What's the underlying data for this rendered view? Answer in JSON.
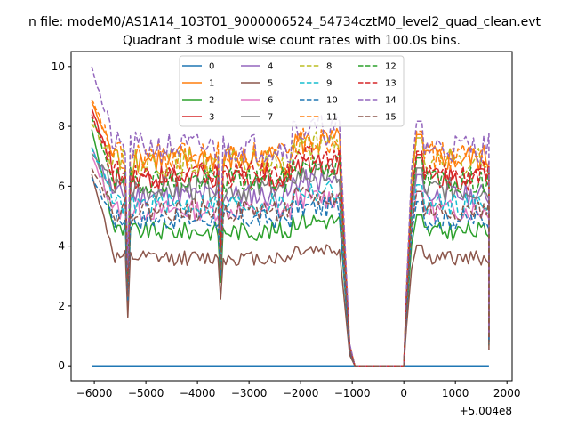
{
  "chart_data": {
    "type": "line",
    "supertitle": "n file: modeM0/AS1A14_103T01_9000006524_54734cztM0_level2_quad_clean.evt",
    "title": "Quadrant 3 module wise count rates with 100.0s bins.",
    "xlabel": "",
    "ylabel": "",
    "x_offset_label": "+5.004e8",
    "xlim": [
      -6450,
      2100
    ],
    "ylim": [
      -0.5,
      10.5
    ],
    "xticks": [
      -6000,
      -5000,
      -4000,
      -3000,
      -2000,
      -1000,
      0,
      1000,
      2000
    ],
    "xtick_labels": [
      "−6000",
      "−5000",
      "−4000",
      "−3000",
      "−2000",
      "−1000",
      "0",
      "1000",
      "2000"
    ],
    "yticks": [
      0,
      2,
      4,
      6,
      8,
      10
    ],
    "ytick_labels": [
      "0",
      "2",
      "4",
      "6",
      "8",
      "10"
    ],
    "grid": false,
    "legend_position": "top-center",
    "legend_columns": 4,
    "segments": [
      {
        "x0": -6050,
        "x1": -1250
      },
      {
        "x0": 250,
        "x1": 1650
      }
    ],
    "series": [
      {
        "name": "0",
        "color": "#1f77b4",
        "style": "solid",
        "level": 0.0,
        "start": 0.0
      },
      {
        "name": "1",
        "color": "#ff7f0e",
        "style": "solid",
        "level": 6.9,
        "start": 8.8
      },
      {
        "name": "2",
        "color": "#2ca02c",
        "style": "solid",
        "level": 4.5,
        "start": 7.9
      },
      {
        "name": "3",
        "color": "#d62728",
        "style": "solid",
        "level": 6.3,
        "start": 8.6
      },
      {
        "name": "4",
        "color": "#9467bd",
        "style": "solid",
        "level": 5.7,
        "start": 7.3
      },
      {
        "name": "5",
        "color": "#8c564b",
        "style": "solid",
        "level": 3.6,
        "start": 6.4
      },
      {
        "name": "6",
        "color": "#e377c2",
        "style": "solid",
        "level": 5.2,
        "start": 7.0
      },
      {
        "name": "7",
        "color": "#7f7f7f",
        "style": "solid",
        "level": 5.9,
        "start": 7.1
      },
      {
        "name": "8",
        "color": "#bcbd22",
        "style": "dashed",
        "level": 6.8,
        "start": 8.1
      },
      {
        "name": "9",
        "color": "#17becf",
        "style": "dashed",
        "level": 5.4,
        "start": 7.3
      },
      {
        "name": "10",
        "color": "#1f77b4",
        "style": "dashed",
        "level": 4.9,
        "start": 6.3
      },
      {
        "name": "11",
        "color": "#ff7f0e",
        "style": "dashed",
        "level": 7.0,
        "start": 8.9
      },
      {
        "name": "12",
        "color": "#2ca02c",
        "style": "dashed",
        "level": 6.2,
        "start": 8.3
      },
      {
        "name": "13",
        "color": "#d62728",
        "style": "dashed",
        "level": 6.4,
        "start": 8.4
      },
      {
        "name": "14",
        "color": "#9467bd",
        "style": "dashed",
        "level": 7.3,
        "start": 10.0
      },
      {
        "name": "15",
        "color": "#8c564b",
        "style": "dashed",
        "level": 5.2,
        "start": 6.6
      }
    ]
  }
}
